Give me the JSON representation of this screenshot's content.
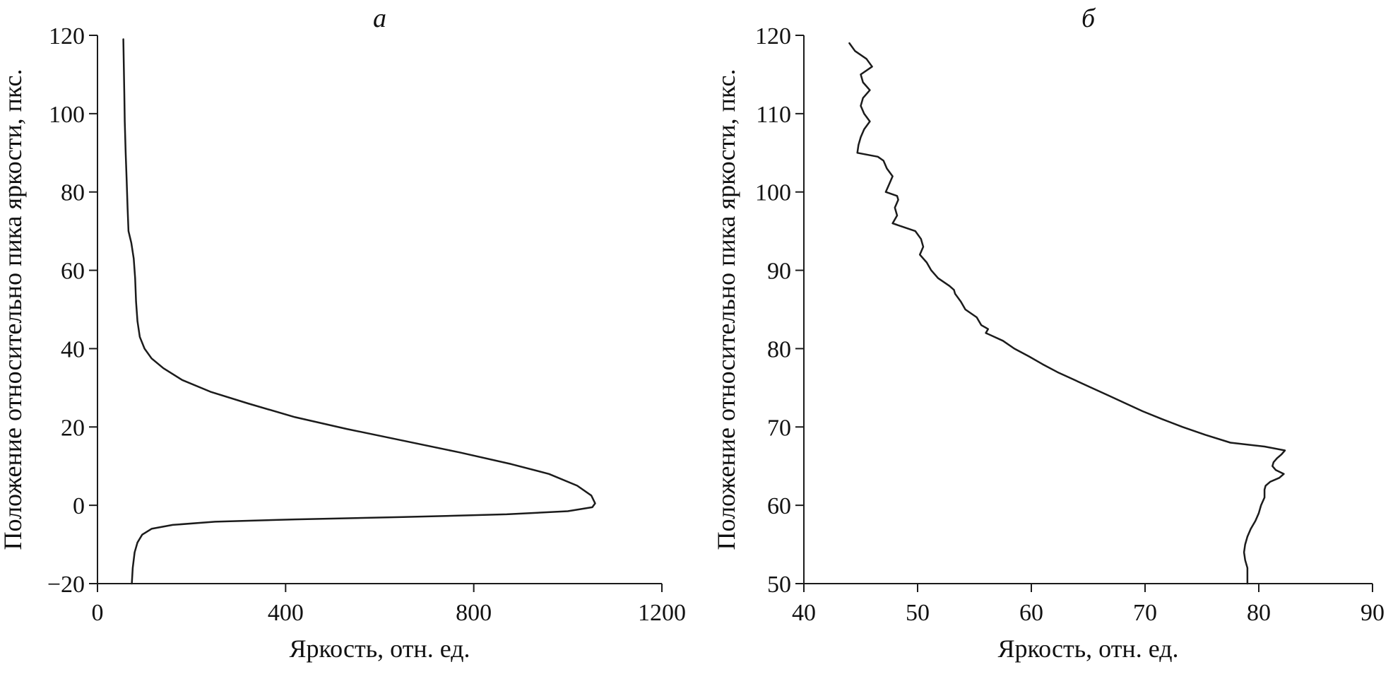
{
  "figure": {
    "background": "#ffffff",
    "line_color": "#1b1b1b",
    "axis_color": "#1b1b1b",
    "text_color": "#111111"
  },
  "chart_data": [
    {
      "id": "a",
      "type": "line",
      "title": "а",
      "xlabel": "Яркость, отн. ед.",
      "ylabel": "Положение относительно пика яркости, пкс.",
      "xlim": [
        0,
        1200
      ],
      "ylim": [
        -20,
        120
      ],
      "xticks": [
        0,
        400,
        800,
        1200
      ],
      "xtick_labels": [
        "0",
        "400",
        "800",
        "1200"
      ],
      "yticks": [
        -20,
        0,
        20,
        40,
        60,
        80,
        100,
        120
      ],
      "ytick_labels": [
        "−20",
        "0",
        "20",
        "40",
        "60",
        "80",
        "100",
        "120"
      ],
      "grid": false,
      "legend": null,
      "series": [
        {
          "name": "brightness-profile-a",
          "points": [
            [
              55,
              119
            ],
            [
              56,
              112
            ],
            [
              57,
              105
            ],
            [
              58,
              98
            ],
            [
              60,
              90
            ],
            [
              62,
              83
            ],
            [
              64,
              76
            ],
            [
              66,
              70
            ],
            [
              72,
              67
            ],
            [
              77,
              63
            ],
            [
              80,
              58
            ],
            [
              82,
              52
            ],
            [
              85,
              47
            ],
            [
              90,
              43
            ],
            [
              100,
              40
            ],
            [
              115,
              37.5
            ],
            [
              140,
              35
            ],
            [
              180,
              32
            ],
            [
              240,
              29
            ],
            [
              320,
              26
            ],
            [
              420,
              22.5
            ],
            [
              530,
              19.5
            ],
            [
              650,
              16.5
            ],
            [
              770,
              13.5
            ],
            [
              880,
              10.5
            ],
            [
              960,
              8
            ],
            [
              1020,
              5
            ],
            [
              1050,
              2.5
            ],
            [
              1058,
              0.5
            ],
            [
              1052,
              -0.5
            ],
            [
              1000,
              -1.5
            ],
            [
              870,
              -2.3
            ],
            [
              650,
              -3
            ],
            [
              420,
              -3.6
            ],
            [
              250,
              -4.2
            ],
            [
              160,
              -5
            ],
            [
              115,
              -6
            ],
            [
              95,
              -7.5
            ],
            [
              85,
              -9.5
            ],
            [
              79,
              -12
            ],
            [
              75,
              -16
            ],
            [
              73,
              -20
            ]
          ]
        }
      ]
    },
    {
      "id": "b",
      "type": "line",
      "title": "б",
      "xlabel": "Яркость, отн. ед.",
      "ylabel": "Положение относительно пика яркости, пкс.",
      "xlim": [
        40,
        90
      ],
      "ylim": [
        50,
        120
      ],
      "xticks": [
        40,
        50,
        60,
        70,
        80,
        90
      ],
      "xtick_labels": [
        "40",
        "50",
        "60",
        "70",
        "80",
        "90"
      ],
      "yticks": [
        50,
        60,
        70,
        80,
        90,
        100,
        110,
        120
      ],
      "ytick_labels": [
        "50",
        "60",
        "70",
        "80",
        "90",
        "100",
        "110",
        "120"
      ],
      "grid": false,
      "legend": null,
      "series": [
        {
          "name": "brightness-profile-b",
          "points": [
            [
              44,
              119
            ],
            [
              44.5,
              118
            ],
            [
              45.5,
              117
            ],
            [
              46,
              116
            ],
            [
              45,
              115
            ],
            [
              45.2,
              114
            ],
            [
              45.8,
              113
            ],
            [
              45.2,
              112
            ],
            [
              45,
              111
            ],
            [
              45.3,
              110
            ],
            [
              45.8,
              109
            ],
            [
              45.3,
              108
            ],
            [
              45,
              107
            ],
            [
              44.8,
              106
            ],
            [
              44.7,
              105
            ],
            [
              46.5,
              104.5
            ],
            [
              47,
              104
            ],
            [
              47.3,
              103
            ],
            [
              47.8,
              102
            ],
            [
              47.5,
              101
            ],
            [
              47.2,
              100
            ],
            [
              48.2,
              99.5
            ],
            [
              48.3,
              99
            ],
            [
              48,
              98
            ],
            [
              48.2,
              97
            ],
            [
              47.8,
              96
            ],
            [
              49.8,
              95
            ],
            [
              50.3,
              94
            ],
            [
              50.5,
              93
            ],
            [
              50.2,
              92
            ],
            [
              50.8,
              91
            ],
            [
              51.2,
              90
            ],
            [
              51.8,
              89
            ],
            [
              52.8,
              88
            ],
            [
              53.2,
              87.5
            ],
            [
              53.3,
              87
            ],
            [
              53.8,
              86
            ],
            [
              54.2,
              85
            ],
            [
              55.2,
              84
            ],
            [
              55.4,
              83.5
            ],
            [
              55.6,
              83
            ],
            [
              56.2,
              82.5
            ],
            [
              56,
              82
            ],
            [
              57.5,
              81
            ],
            [
              58.5,
              80
            ],
            [
              59.8,
              79
            ],
            [
              61,
              78
            ],
            [
              62.3,
              77
            ],
            [
              63.8,
              76
            ],
            [
              65.3,
              75
            ],
            [
              66.8,
              74
            ],
            [
              68.3,
              73
            ],
            [
              69.8,
              72
            ],
            [
              71.5,
              71
            ],
            [
              73.3,
              70
            ],
            [
              75.3,
              69
            ],
            [
              77.5,
              68
            ],
            [
              80.5,
              67.5
            ],
            [
              82.3,
              67
            ],
            [
              82,
              66.5
            ],
            [
              81.6,
              66
            ],
            [
              81.3,
              65.5
            ],
            [
              81.2,
              65
            ],
            [
              81.5,
              64.5
            ],
            [
              82.2,
              64
            ],
            [
              81.8,
              63.5
            ],
            [
              81,
              63
            ],
            [
              80.6,
              62.5
            ],
            [
              80.5,
              62
            ],
            [
              80.5,
              61
            ],
            [
              80.2,
              60
            ],
            [
              80,
              59
            ],
            [
              79.7,
              58
            ],
            [
              79.3,
              57
            ],
            [
              79,
              56
            ],
            [
              78.8,
              55
            ],
            [
              78.7,
              54
            ],
            [
              78.8,
              53
            ],
            [
              79,
              52
            ],
            [
              79,
              51
            ],
            [
              79,
              50
            ]
          ]
        }
      ]
    }
  ]
}
